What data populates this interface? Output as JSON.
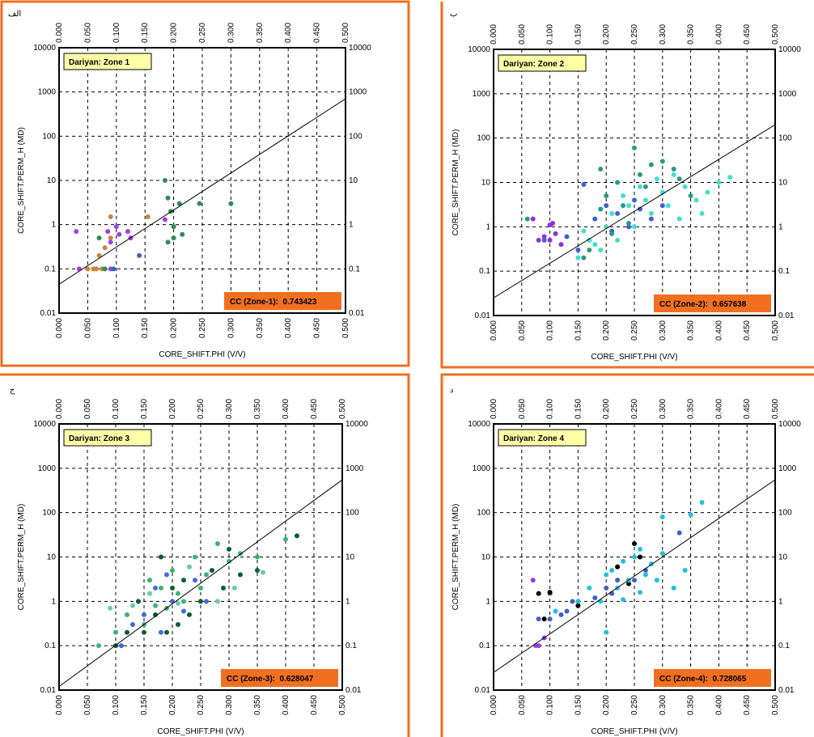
{
  "chart_data": [
    {
      "type": "scatter",
      "panel_label": "الف",
      "title": "Dariyan: Zone 1",
      "x_label": "CORE_SHIFT.PHI (V/V)",
      "y_label": "CORE_SHIFT.PERM_H (MD)",
      "annotation": "CC (Zone-1):  0.743423",
      "xlim": [
        0,
        0.5
      ],
      "ylim": [
        0.01,
        10000
      ],
      "log_y": true,
      "grid": true,
      "xticks": [
        {
          "value": 0,
          "label": "0.000"
        },
        {
          "value": 0.05,
          "label": "0.050"
        },
        {
          "value": 0.1,
          "label": "0.100"
        },
        {
          "value": 0.15,
          "label": "0.150"
        },
        {
          "value": 0.2,
          "label": "0.200"
        },
        {
          "value": 0.25,
          "label": "0.250"
        },
        {
          "value": 0.3,
          "label": "0.300"
        },
        {
          "value": 0.35,
          "label": "0.350"
        },
        {
          "value": 0.4,
          "label": "0.400"
        },
        {
          "value": 0.45,
          "label": "0.450"
        },
        {
          "value": 0.5,
          "label": "0.500"
        }
      ],
      "yticks": [
        0.01,
        0.1,
        1,
        10,
        100,
        1000,
        10000
      ],
      "trendline": {
        "x": [
          0,
          0.5
        ],
        "y": [
          0.045,
          700
        ]
      },
      "series": [
        {
          "color": "#c8843a",
          "x": [
            0.05,
            0.06,
            0.07,
            0.08,
            0.09,
            0.09,
            0.155,
            0.065,
            0.075
          ],
          "y": [
            0.1,
            0.1,
            0.2,
            0.3,
            1.5,
            0.5,
            1.5,
            0.1,
            0.1
          ]
        },
        {
          "color": "#a040e0",
          "x": [
            0.03,
            0.035,
            0.085,
            0.09,
            0.1,
            0.12,
            0.125,
            0.105,
            0.185,
            0.09
          ],
          "y": [
            0.7,
            0.1,
            0.7,
            0.4,
            0.9,
            0.7,
            0.5,
            0.6,
            1.3,
            0.1
          ]
        },
        {
          "color": "#2e8b57",
          "x": [
            0.185,
            0.19,
            0.195,
            0.2,
            0.2,
            0.21,
            0.215,
            0.245,
            0.3,
            0.08,
            0.07,
            0.19
          ],
          "y": [
            10,
            4,
            2,
            0.5,
            0.9,
            3,
            0.6,
            3,
            3,
            0.1,
            0.5,
            0.4
          ]
        },
        {
          "color": "#4060c0",
          "x": [
            0.14,
            0.095
          ],
          "y": [
            0.2,
            0.1
          ]
        }
      ]
    },
    {
      "type": "scatter",
      "panel_label": "ب",
      "title": "Dariyan: Zone 2",
      "x_label": "CORE_SHIFT.PHI (V/V)",
      "y_label": "CORE_SHIFT.PERM_H (MD)",
      "annotation": "CC (Zone-2):  0.657638",
      "xlim": [
        0,
        0.5
      ],
      "ylim": [
        0.01,
        10000
      ],
      "log_y": true,
      "grid": true,
      "xticks": [
        {
          "value": 0,
          "label": "0.000"
        },
        {
          "value": 0.05,
          "label": "0.050"
        },
        {
          "value": 0.1,
          "label": "0.100"
        },
        {
          "value": 0.15,
          "label": "0.150"
        },
        {
          "value": 0.2,
          "label": "0.200"
        },
        {
          "value": 0.25,
          "label": "0.250"
        },
        {
          "value": 0.3,
          "label": "0.300"
        },
        {
          "value": 0.35,
          "label": "0.350"
        },
        {
          "value": 0.4,
          "label": "0.400"
        },
        {
          "value": 0.45,
          "label": "0.450"
        },
        {
          "value": 0.5,
          "label": "0.500"
        }
      ],
      "yticks": [
        0.01,
        0.1,
        1,
        10,
        100,
        1000,
        10000
      ],
      "trendline": {
        "x": [
          0,
          0.5
        ],
        "y": [
          0.025,
          200
        ]
      },
      "series": [
        {
          "color": "#9030e0",
          "x": [
            0.08,
            0.09,
            0.1,
            0.1,
            0.11,
            0.105,
            0.07,
            0.12
          ],
          "y": [
            0.5,
            0.6,
            1.1,
            0.5,
            0.7,
            1.2,
            1.5,
            0.4
          ]
        },
        {
          "color": "#4060d0",
          "x": [
            0.09,
            0.15,
            0.16,
            0.18,
            0.2,
            0.22,
            0.24,
            0.25,
            0.28,
            0.3,
            0.17,
            0.21,
            0.26,
            0.13
          ],
          "y": [
            0.5,
            0.3,
            9,
            1.5,
            3,
            2,
            1,
            4,
            1.5,
            3,
            0.5,
            0.8,
            2.5,
            0.6
          ]
        },
        {
          "color": "#2a9a80",
          "x": [
            0.06,
            0.16,
            0.17,
            0.19,
            0.2,
            0.22,
            0.23,
            0.25,
            0.26,
            0.27,
            0.28,
            0.3,
            0.32,
            0.35,
            0.24,
            0.21,
            0.19,
            0.33
          ],
          "y": [
            1.5,
            0.2,
            0.3,
            20,
            5,
            10,
            3,
            60,
            15,
            8,
            25,
            30,
            20,
            5,
            1.2,
            0.7,
            2.5,
            12
          ]
        },
        {
          "color": "#40e0d0",
          "x": [
            0.15,
            0.17,
            0.19,
            0.2,
            0.21,
            0.22,
            0.23,
            0.24,
            0.25,
            0.26,
            0.27,
            0.28,
            0.29,
            0.3,
            0.31,
            0.32,
            0.34,
            0.36,
            0.38,
            0.4,
            0.42,
            0.37,
            0.33,
            0.18,
            0.16
          ],
          "y": [
            0.2,
            0.5,
            0.3,
            1,
            2,
            0.5,
            5,
            3,
            1,
            8,
            4,
            2,
            12,
            6,
            3,
            15,
            8,
            4,
            6,
            10,
            13,
            2,
            1.5,
            0.4,
            0.8
          ]
        }
      ]
    },
    {
      "type": "scatter",
      "panel_label": "ج",
      "title": "Dariyan: Zone 3",
      "x_label": "CORE_SHIFT.PHI (V/V)",
      "y_label": "CORE_SHIFT.PERM_H (MD)",
      "annotation": "CC (Zone-3):  0.628047",
      "xlim": [
        0,
        0.5
      ],
      "ylim": [
        0.01,
        10000
      ],
      "log_y": true,
      "grid": true,
      "xticks": [
        {
          "value": 0,
          "label": "0.000"
        },
        {
          "value": 0.05,
          "label": "0.050"
        },
        {
          "value": 0.1,
          "label": "0.100"
        },
        {
          "value": 0.15,
          "label": "0.150"
        },
        {
          "value": 0.2,
          "label": "0.200"
        },
        {
          "value": 0.25,
          "label": "0.250"
        },
        {
          "value": 0.3,
          "label": "0.300"
        },
        {
          "value": 0.35,
          "label": "0.350"
        },
        {
          "value": 0.4,
          "label": "0.400"
        },
        {
          "value": 0.45,
          "label": "0.450"
        },
        {
          "value": 0.5,
          "label": "0.500"
        }
      ],
      "yticks": [
        0.01,
        0.1,
        1,
        10,
        100,
        1000,
        10000
      ],
      "trendline": {
        "x": [
          0,
          0.5
        ],
        "y": [
          0.012,
          550
        ]
      },
      "series": [
        {
          "color": "#3cb371",
          "x": [
            0.07,
            0.1,
            0.12,
            0.14,
            0.16,
            0.18,
            0.2,
            0.22,
            0.24,
            0.26,
            0.28,
            0.3,
            0.32,
            0.35,
            0.4,
            0.15,
            0.19,
            0.25,
            0.21,
            0.17
          ],
          "y": [
            0.1,
            0.2,
            0.5,
            1,
            3,
            2,
            5,
            1,
            10,
            4,
            20,
            8,
            12,
            10,
            25,
            0.3,
            0.7,
            2,
            1.5,
            0.8
          ]
        },
        {
          "color": "#0b5d33",
          "x": [
            0.1,
            0.12,
            0.15,
            0.17,
            0.19,
            0.2,
            0.22,
            0.23,
            0.25,
            0.27,
            0.3,
            0.32,
            0.35,
            0.42,
            0.14,
            0.18,
            0.21,
            0.29
          ],
          "y": [
            0.1,
            0.2,
            0.2,
            0.5,
            0.2,
            2,
            3,
            0.5,
            1,
            5,
            15,
            4,
            5,
            30,
            1,
            10,
            0.3,
            2
          ]
        },
        {
          "color": "#4169e1",
          "x": [
            0.11,
            0.13,
            0.15,
            0.17,
            0.19,
            0.2,
            0.22,
            0.24,
            0.26,
            0.18
          ],
          "y": [
            0.1,
            0.3,
            0.5,
            2,
            4,
            1,
            0.6,
            3,
            1,
            0.2
          ]
        },
        {
          "color": "#66cdaa",
          "x": [
            0.09,
            0.13,
            0.16,
            0.21,
            0.23,
            0.28,
            0.31,
            0.36
          ],
          "y": [
            0.7,
            0.8,
            1.5,
            0.9,
            6,
            1,
            2,
            4.5
          ]
        }
      ]
    },
    {
      "type": "scatter",
      "panel_label": "د",
      "title": "Dariyan: Zone 4",
      "x_label": "CORE_SHIFT.PHI (V/V)",
      "y_label": "CORE_SHIFT.PERM_H (MD)",
      "annotation": "CC (Zone-4):  0.728065",
      "xlim": [
        0,
        0.5
      ],
      "ylim": [
        0.01,
        10000
      ],
      "log_y": true,
      "grid": true,
      "xticks": [
        {
          "value": 0,
          "label": "0.000"
        },
        {
          "value": 0.05,
          "label": "0.050"
        },
        {
          "value": 0.1,
          "label": "0.100"
        },
        {
          "value": 0.15,
          "label": "0.150"
        },
        {
          "value": 0.2,
          "label": "0.200"
        },
        {
          "value": 0.25,
          "label": "0.250"
        },
        {
          "value": 0.3,
          "label": "0.300"
        },
        {
          "value": 0.35,
          "label": "0.350"
        },
        {
          "value": 0.4,
          "label": "0.400"
        },
        {
          "value": 0.45,
          "label": "0.450"
        },
        {
          "value": 0.5,
          "label": "0.500"
        }
      ],
      "yticks": [
        0.01,
        0.1,
        1,
        10,
        100,
        1000,
        10000
      ],
      "trendline": {
        "x": [
          0,
          0.5
        ],
        "y": [
          0.025,
          550
        ]
      },
      "series": [
        {
          "color": "#9040e0",
          "x": [
            0.07,
            0.08,
            0.09,
            0.1,
            0.075
          ],
          "y": [
            3,
            0.1,
            0.15,
            1.5,
            0.1
          ]
        },
        {
          "color": "#000000",
          "x": [
            0.08,
            0.09,
            0.1,
            0.15,
            0.22,
            0.24,
            0.25,
            0.26
          ],
          "y": [
            1.5,
            0.4,
            1.6,
            0.8,
            6,
            2.5,
            20,
            10
          ]
        },
        {
          "color": "#4060c0",
          "x": [
            0.08,
            0.1,
            0.12,
            0.14,
            0.18,
            0.2,
            0.22,
            0.25,
            0.27,
            0.33,
            0.13,
            0.21
          ],
          "y": [
            0.4,
            0.4,
            0.5,
            1,
            1.2,
            2,
            3,
            3,
            5,
            35,
            0.6,
            1.5
          ]
        },
        {
          "color": "#20c0e0",
          "x": [
            0.11,
            0.15,
            0.17,
            0.19,
            0.2,
            0.21,
            0.22,
            0.23,
            0.24,
            0.25,
            0.26,
            0.27,
            0.28,
            0.29,
            0.3,
            0.32,
            0.34,
            0.35,
            0.37,
            0.2,
            0.3,
            0.23,
            0.26
          ],
          "y": [
            0.6,
            1,
            2,
            1,
            4,
            5,
            2,
            8,
            3,
            10,
            15,
            4,
            7,
            3,
            80,
            2,
            5,
            90,
            170,
            0.2,
            12,
            1.1,
            1.6
          ]
        }
      ]
    }
  ]
}
